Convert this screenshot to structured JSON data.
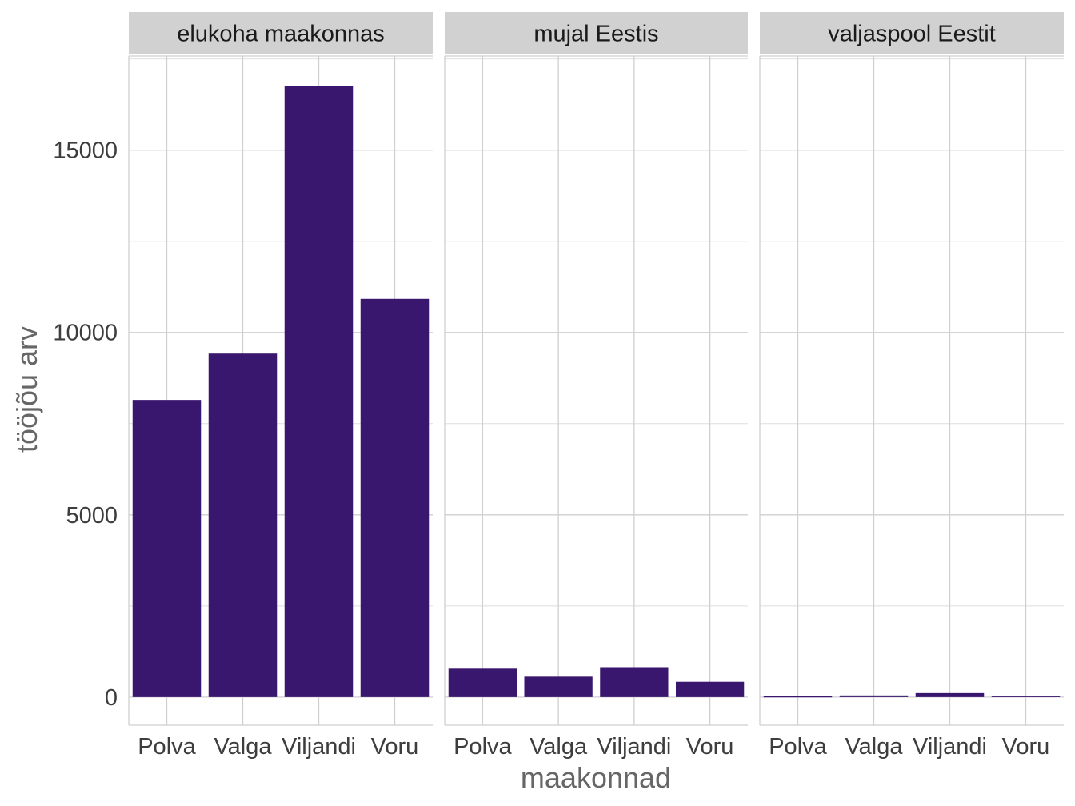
{
  "chart_data": {
    "type": "bar",
    "facets": [
      "elukoha maakonnas",
      "mujal Eestis",
      "valjaspool Eestit"
    ],
    "categories": [
      "Polva",
      "Valga",
      "Viljandi",
      "Voru"
    ],
    "series": [
      {
        "facet": "elukoha maakonnas",
        "values": [
          8150,
          9420,
          16750,
          10920
        ]
      },
      {
        "facet": "mujal Eestis",
        "values": [
          780,
          560,
          820,
          420
        ]
      },
      {
        "facet": "valjaspool Eestit",
        "values": [
          25,
          45,
          110,
          40
        ]
      }
    ],
    "xlabel": "maakonnad",
    "ylabel": "tööjõu arv",
    "ylim": [
      -770,
      17580
    ],
    "yticks": [
      0,
      5000,
      10000,
      15000
    ],
    "ytick_labels": [
      "0",
      "5000",
      "10000",
      "15000"
    ],
    "bar_color": "#3a176f",
    "grid": true,
    "legend": "none"
  }
}
